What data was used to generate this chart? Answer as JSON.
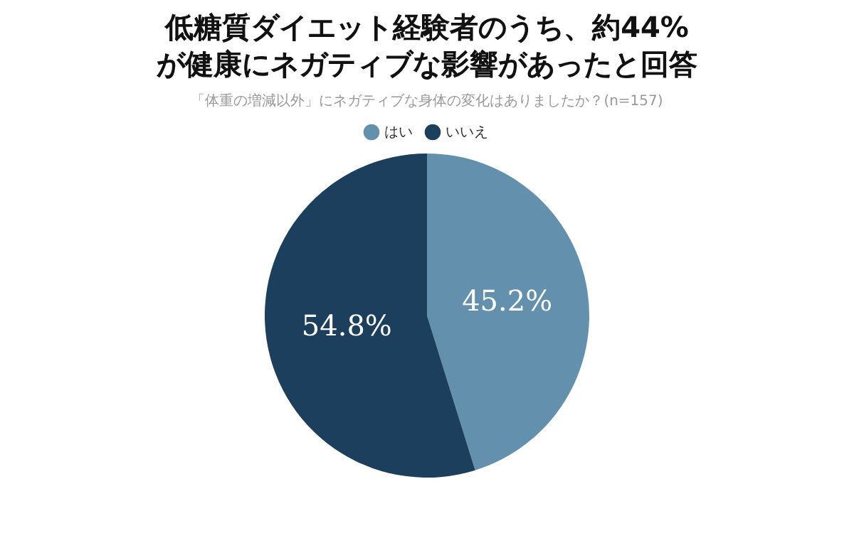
{
  "chart_data": {
    "type": "pie",
    "title": "低糖質ダイエット経験者のうち、約44%が健康にネガティブな影響があったと回答",
    "subtitle": "「体重の増減以外」にネガティブな身体の変化はありましたか？(n=157)",
    "categories": [
      "はい",
      "いいえ"
    ],
    "values": [
      45.2,
      54.8
    ],
    "colors": [
      "#6391ad",
      "#1b3f5c"
    ],
    "value_labels": [
      "45.2%",
      "54.8%"
    ],
    "legend": "top"
  }
}
